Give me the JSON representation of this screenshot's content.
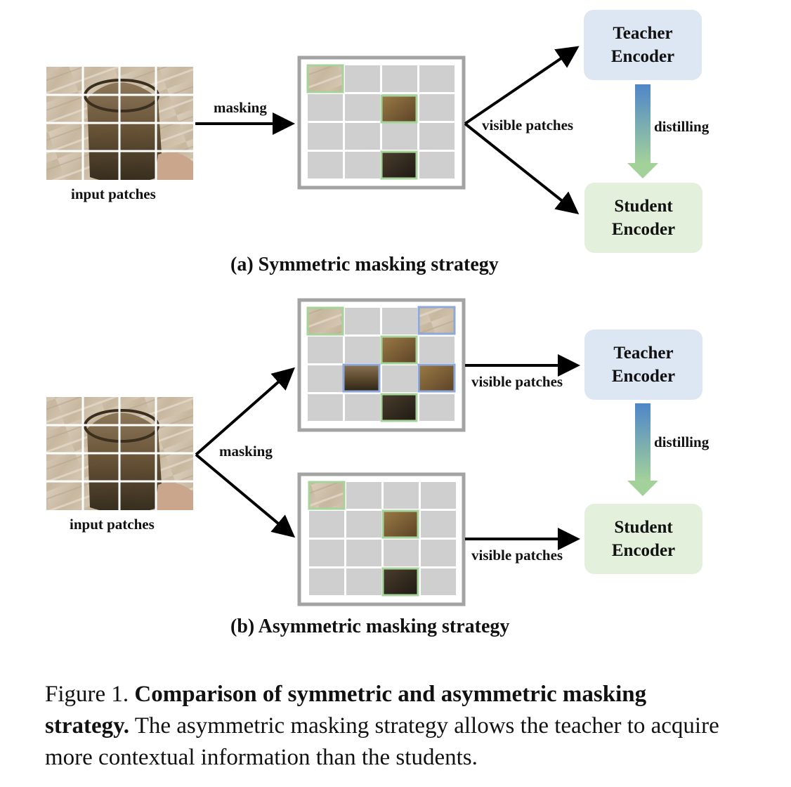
{
  "panel_a": {
    "input_label": "input patches",
    "masking_label": "masking",
    "visible_label": "visible patches",
    "teacher_line1": "Teacher",
    "teacher_line2": "Encoder",
    "distill_label": "distilling",
    "student_line1": "Student",
    "student_line2": "Encoder",
    "subcaption": "(a) Symmetric masking strategy"
  },
  "panel_b": {
    "input_label": "input patches",
    "masking_label": "masking",
    "visible_label_top": "visible patches",
    "visible_label_bottom": "visible patches",
    "teacher_line1": "Teacher",
    "teacher_line2": "Encoder",
    "distill_label": "distilling",
    "student_line1": "Student",
    "student_line2": "Encoder",
    "subcaption": "(b) Asymmetric masking strategy"
  },
  "caption": {
    "prefix": "Figure 1. ",
    "bold": "Comparison of symmetric and asymmetric masking strategy.",
    "rest": " The asymmetric masking strategy allows the teacher to acquire more contextual information than the students."
  },
  "colors": {
    "visible_border_green": "#a6d39a",
    "visible_border_blue": "#8fa8dc",
    "masked_patch": "#d0cfd0",
    "frame": "#a3a3a3",
    "teacher_box": "#dde6f3",
    "student_box": "#e3f0dc",
    "distill_top": "#4e86c9",
    "distill_bottom": "#a3d19a"
  }
}
